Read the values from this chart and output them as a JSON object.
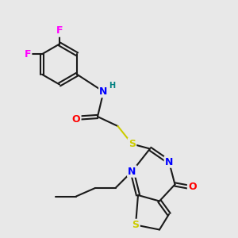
{
  "background_color": "#e8e8e8",
  "bond_color": "#1a1a1a",
  "atom_colors": {
    "F": "#ff00ff",
    "N": "#0000ff",
    "O": "#ff0000",
    "S": "#cccc00",
    "H": "#008080",
    "C": "#1a1a1a"
  },
  "title": "",
  "figsize": [
    3.0,
    3.0
  ],
  "dpi": 100
}
